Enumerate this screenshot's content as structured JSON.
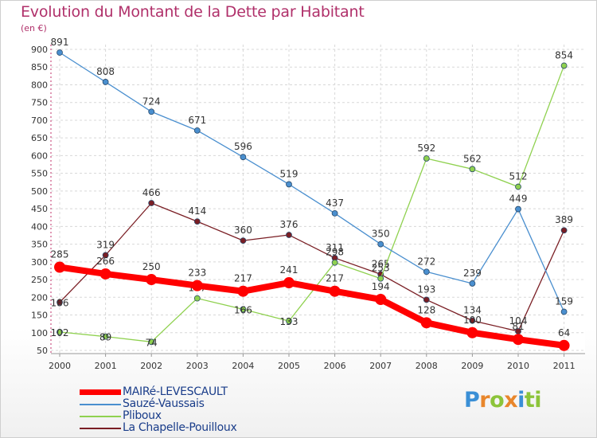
{
  "header": {
    "title": "Evolution du Montant de la Dette par Habitant",
    "subtitle": "(en €)"
  },
  "logo": {
    "text": "Proxiti",
    "letters": [
      "P",
      "r",
      "o",
      "x",
      "i",
      "ti"
    ]
  },
  "chart_data": {
    "type": "line",
    "title": "Evolution du Montant de la Dette par Habitant",
    "ylabel": "(en €)",
    "xlabel": "",
    "x": [
      "2000",
      "2001",
      "2002",
      "2003",
      "2004",
      "2005",
      "2006",
      "2007",
      "2008",
      "2009",
      "2010",
      "2011"
    ],
    "yticks": [
      50,
      100,
      150,
      200,
      250,
      300,
      350,
      400,
      450,
      500,
      550,
      600,
      650,
      700,
      750,
      800,
      850,
      900
    ],
    "ylim": [
      50,
      900
    ],
    "grid": true,
    "legend_position": "bottom-left",
    "series": [
      {
        "name": "MAIRé-LEVESCAULT",
        "color": "#ff0000",
        "labelColor": "#333333",
        "values": [
          285,
          266,
          250,
          233,
          217,
          241,
          217,
          194,
          128,
          100,
          81,
          64
        ]
      },
      {
        "name": "Sauzé-Vaussais",
        "color": "#4a8fcf",
        "labelColor": "#333333",
        "values": [
          891,
          808,
          724,
          671,
          596,
          519,
          437,
          350,
          272,
          239,
          449,
          159
        ]
      },
      {
        "name": "Pliboux",
        "color": "#8fd14f",
        "labelColor": "#333333",
        "values": [
          102,
          89,
          74,
          197,
          166,
          133,
          298,
          253,
          592,
          562,
          512,
          854
        ]
      },
      {
        "name": "La Chapelle-Pouilloux",
        "color": "#7a1e24",
        "labelColor": "#333333",
        "values": [
          186,
          319,
          466,
          414,
          360,
          376,
          311,
          265,
          193,
          134,
          104,
          389
        ]
      }
    ]
  }
}
